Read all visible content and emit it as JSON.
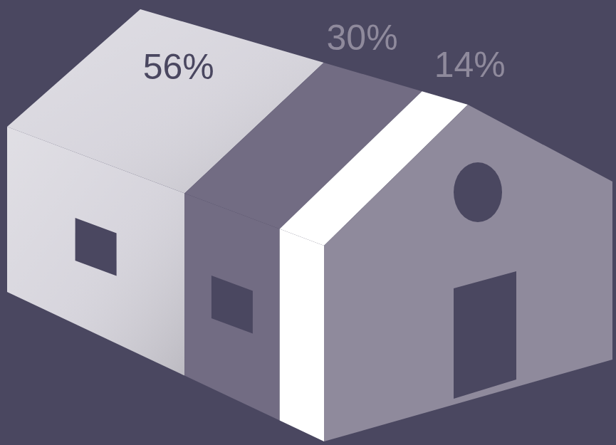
{
  "chart_data": {
    "type": "proportion",
    "values": [
      56,
      30,
      14
    ],
    "value_labels": [
      "56%",
      "30%",
      "14%"
    ],
    "colors": [
      "#d6d4dc",
      "#726c83",
      "#ffffff"
    ],
    "data_labels": true
  }
}
